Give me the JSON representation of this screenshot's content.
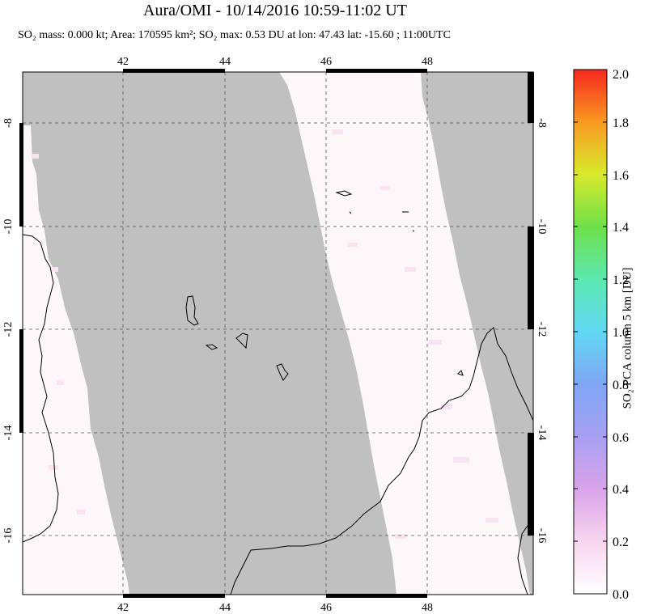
{
  "header": {
    "title": "Aura/OMI - 10/14/2016 10:59-11:02 UT",
    "subtitle": "SO₂ mass: 0.000 kt; Area: 170595 km²; SO₂ max: 0.53 DU at lon: 47.43 lat: -15.60 ; 11:00UTC"
  },
  "map": {
    "lon_ticks": [
      "42",
      "44",
      "46",
      "48"
    ],
    "lat_ticks": [
      "-8",
      "-10",
      "-12",
      "-14",
      "-16"
    ],
    "lon_range": [
      40,
      50
    ],
    "lat_range": [
      -17,
      -7
    ],
    "colors": {
      "no_data": "#c0c0c0",
      "data": "#fdf7fa",
      "grid": "#555555"
    }
  },
  "colorbar": {
    "label": "SO₂ PCA column 5 km [DU]",
    "ticks": [
      "0.0",
      "0.2",
      "0.4",
      "0.6",
      "0.8",
      "1.0",
      "1.2",
      "1.4",
      "1.6",
      "1.8",
      "2.0"
    ],
    "range": [
      0,
      2.0
    ]
  }
}
